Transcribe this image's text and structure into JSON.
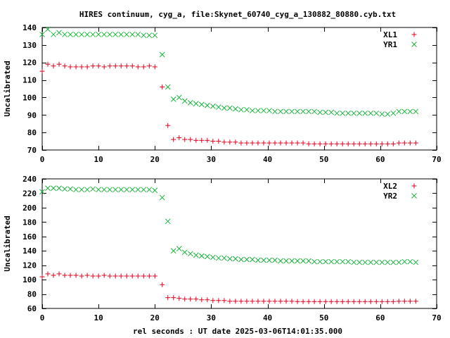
{
  "title": "HIRES continuum, cyg_a, file:Skynet_60740_cyg_a_130882_80880.cyb.txt",
  "xlabel": "rel seconds : UT date 2025-03-06T14:01:35.000",
  "colors": {
    "red": "#e0001b",
    "green": "#17b33a"
  },
  "chart_data": [
    {
      "type": "scatter",
      "ylabel": "Uncalibrated",
      "xlim": [
        0,
        70
      ],
      "ylim": [
        70,
        140
      ],
      "xticks": [
        0,
        10,
        20,
        30,
        40,
        50,
        60,
        70
      ],
      "yticks": [
        70,
        80,
        90,
        100,
        110,
        120,
        130,
        140
      ],
      "legend": "top-right",
      "series": [
        {
          "name": "XL1",
          "marker": "+",
          "color": "#e0001b",
          "x": [
            0,
            1,
            2,
            3,
            4,
            5,
            6,
            7,
            8,
            9,
            10,
            11,
            12,
            13,
            14,
            15,
            16,
            17,
            18,
            19,
            20,
            21.3,
            22.3,
            23.3,
            24.3,
            25.3,
            26.3,
            27.3,
            28.3,
            29.3,
            30.3,
            31.3,
            32.3,
            33.3,
            34.3,
            35.3,
            36.3,
            37.3,
            38.3,
            39.3,
            40.3,
            41.3,
            42.3,
            43.3,
            44.3,
            45.3,
            46.3,
            47.3,
            48.3,
            49.3,
            50.3,
            51.3,
            52.3,
            53.3,
            54.3,
            55.3,
            56.3,
            57.3,
            58.3,
            59.3,
            60.3,
            61.3,
            62.3,
            63.3,
            64.3,
            65.3,
            66.3
          ],
          "y": [
            115,
            119,
            118,
            119,
            118,
            117.5,
            117.5,
            117.5,
            117.5,
            118,
            118,
            117.5,
            118,
            118,
            118,
            118,
            118,
            117.5,
            117.5,
            118,
            117.5,
            106,
            84,
            76,
            77,
            76,
            76,
            75.5,
            75.5,
            75.5,
            75,
            75,
            74.5,
            74.5,
            74.5,
            74,
            74,
            74,
            74,
            74,
            74,
            74,
            74,
            74,
            74,
            74,
            74,
            73.5,
            73.5,
            73.5,
            73.5,
            73.5,
            73.5,
            73.5,
            73.5,
            73.5,
            73.5,
            73.5,
            73.5,
            73.5,
            73.5,
            73.5,
            73.5,
            74,
            74,
            74,
            74
          ]
        },
        {
          "name": "YR1",
          "marker": "x",
          "color": "#17b33a",
          "x": [
            0,
            1,
            2,
            3,
            4,
            5,
            6,
            7,
            8,
            9,
            10,
            11,
            12,
            13,
            14,
            15,
            16,
            17,
            18,
            19,
            20,
            21.3,
            22.3,
            23.3,
            24.3,
            25.3,
            26.3,
            27.3,
            28.3,
            29.3,
            30.3,
            31.3,
            32.3,
            33.3,
            34.3,
            35.3,
            36.3,
            37.3,
            38.3,
            39.3,
            40.3,
            41.3,
            42.3,
            43.3,
            44.3,
            45.3,
            46.3,
            47.3,
            48.3,
            49.3,
            50.3,
            51.3,
            52.3,
            53.3,
            54.3,
            55.3,
            56.3,
            57.3,
            58.3,
            59.3,
            60.3,
            61.3,
            62.3,
            63.3,
            64.3,
            65.3,
            66.3
          ],
          "y": [
            136,
            139,
            136,
            137,
            136,
            136,
            136,
            136,
            136,
            136,
            136,
            136,
            136,
            136,
            136,
            136,
            136,
            136,
            135.5,
            135.5,
            135.5,
            124.5,
            106,
            99,
            100,
            98,
            97,
            96.5,
            96,
            95.5,
            95,
            94.5,
            94,
            94,
            93.5,
            93,
            93,
            92.5,
            92.5,
            92.5,
            92.5,
            92,
            92,
            92,
            92,
            92,
            92,
            92,
            92,
            91.5,
            91.5,
            91.5,
            91,
            91,
            91,
            91,
            91,
            91,
            91,
            91,
            90.5,
            90.5,
            91,
            92,
            92,
            92,
            92
          ]
        }
      ]
    },
    {
      "type": "scatter",
      "ylabel": "Uncalibrated",
      "xlabel": "rel seconds : UT date 2025-03-06T14:01:35.000",
      "xlim": [
        0,
        70
      ],
      "ylim": [
        60,
        240
      ],
      "xticks": [
        0,
        10,
        20,
        30,
        40,
        50,
        60,
        70
      ],
      "yticks": [
        60,
        80,
        100,
        120,
        140,
        160,
        180,
        200,
        220,
        240
      ],
      "legend": "top-right",
      "series": [
        {
          "name": "XL2",
          "marker": "+",
          "color": "#e0001b",
          "x": [
            0,
            1,
            2,
            3,
            4,
            5,
            6,
            7,
            8,
            9,
            10,
            11,
            12,
            13,
            14,
            15,
            16,
            17,
            18,
            19,
            20,
            21.3,
            22.3,
            23.3,
            24.3,
            25.3,
            26.3,
            27.3,
            28.3,
            29.3,
            30.3,
            31.3,
            32.3,
            33.3,
            34.3,
            35.3,
            36.3,
            37.3,
            38.3,
            39.3,
            40.3,
            41.3,
            42.3,
            43.3,
            44.3,
            45.3,
            46.3,
            47.3,
            48.3,
            49.3,
            50.3,
            51.3,
            52.3,
            53.3,
            54.3,
            55.3,
            56.3,
            57.3,
            58.3,
            59.3,
            60.3,
            61.3,
            62.3,
            63.3,
            64.3,
            65.3,
            66.3
          ],
          "y": [
            104,
            108,
            106,
            108,
            106,
            106,
            106,
            105,
            106,
            105,
            105,
            106,
            105,
            105,
            105,
            105,
            105,
            105,
            105,
            105,
            105,
            93,
            75,
            75,
            74,
            73,
            73,
            73,
            72,
            72,
            71,
            71,
            71,
            70,
            70,
            70,
            70,
            70,
            70,
            70,
            70,
            70,
            70,
            70,
            70,
            69.5,
            69.5,
            69.5,
            69.5,
            69.5,
            69.5,
            69.5,
            69.5,
            69.5,
            69.5,
            69.5,
            69.5,
            69.5,
            69.5,
            69.5,
            69.5,
            69.5,
            69.5,
            70,
            70,
            70,
            70
          ]
        },
        {
          "name": "YR2",
          "marker": "x",
          "color": "#17b33a",
          "x": [
            0,
            1,
            2,
            3,
            4,
            5,
            6,
            7,
            8,
            9,
            10,
            11,
            12,
            13,
            14,
            15,
            16,
            17,
            18,
            19,
            20,
            21.3,
            22.3,
            23.3,
            24.3,
            25.3,
            26.3,
            27.3,
            28.3,
            29.3,
            30.3,
            31.3,
            32.3,
            33.3,
            34.3,
            35.3,
            36.3,
            37.3,
            38.3,
            39.3,
            40.3,
            41.3,
            42.3,
            43.3,
            44.3,
            45.3,
            46.3,
            47.3,
            48.3,
            49.3,
            50.3,
            51.3,
            52.3,
            53.3,
            54.3,
            55.3,
            56.3,
            57.3,
            58.3,
            59.3,
            60.3,
            61.3,
            62.3,
            63.3,
            64.3,
            65.3,
            66.3
          ],
          "y": [
            222,
            227,
            227,
            227,
            226,
            226,
            225,
            225,
            225,
            226,
            225,
            225,
            225,
            225,
            225,
            225,
            225,
            225,
            225,
            225,
            224,
            214,
            181,
            140,
            143,
            138,
            136,
            134,
            133,
            132,
            131,
            130,
            130,
            129,
            129,
            128,
            128,
            128,
            127,
            127,
            127,
            127,
            126,
            126,
            126,
            126,
            126,
            126,
            125,
            125,
            125,
            125,
            125,
            125,
            125,
            124,
            124,
            124,
            124,
            124,
            124,
            124,
            124,
            124,
            125,
            125,
            124
          ]
        }
      ]
    }
  ]
}
